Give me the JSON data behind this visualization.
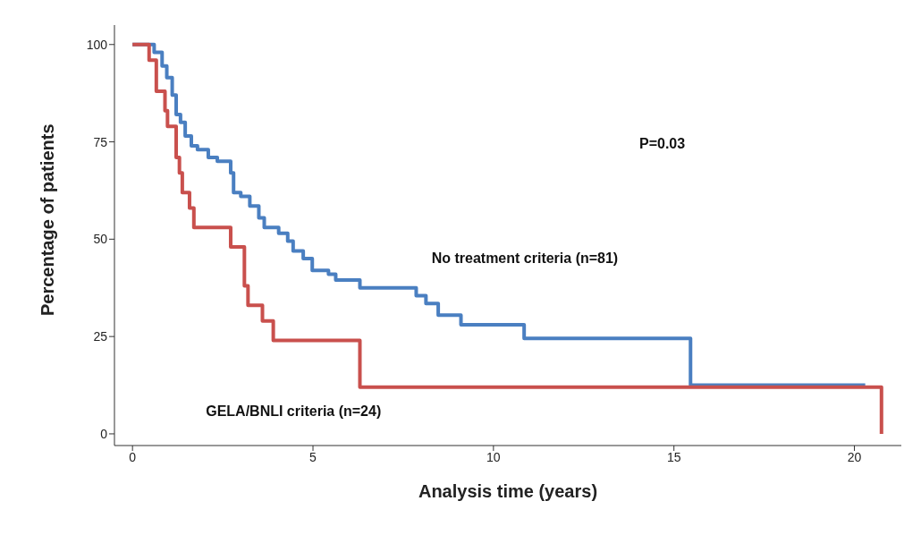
{
  "chart_data": {
    "type": "step",
    "xlabel": "Analysis time (years)",
    "ylabel": "Percentage of patients",
    "annotations": [
      "P=0.03"
    ],
    "xlim": [
      -0.5,
      21.3
    ],
    "xticks": [
      0,
      5,
      10,
      15,
      20
    ],
    "ylim": [
      -3,
      105
    ],
    "yticks": [
      0,
      25,
      50,
      75,
      100
    ],
    "grid": false,
    "legend": false,
    "line_style": "solid",
    "marker": "none",
    "series": [
      {
        "name": "No treatment criteria (n=81)",
        "color": "#4a7fc1",
        "x": [
          0,
          0.6,
          0.82,
          0.95,
          1.1,
          1.21,
          1.33,
          1.46,
          1.63,
          1.8,
          2.1,
          2.35,
          2.72,
          2.8,
          3.0,
          3.25,
          3.5,
          3.65,
          4.05,
          4.3,
          4.45,
          4.73,
          4.98,
          5.43,
          5.63,
          6.3,
          7.86,
          8.13,
          8.47,
          9.1,
          10.85,
          15.46,
          20.3
        ],
        "values": [
          100,
          98,
          94.5,
          91.5,
          87,
          82,
          80,
          76.5,
          74,
          73,
          71,
          70,
          67,
          62,
          61,
          58.5,
          55.5,
          53,
          51.5,
          49.5,
          47,
          45,
          42,
          41,
          39.5,
          37.5,
          35.5,
          33.5,
          30.5,
          28,
          24.5,
          12.5,
          12.5
        ]
      },
      {
        "name": "GELA/BNLI criteria (n=24)",
        "color": "#c9504d",
        "x": [
          0,
          0.46,
          0.66,
          0.9,
          0.97,
          1.21,
          1.3,
          1.38,
          1.58,
          1.7,
          2.72,
          3.1,
          3.2,
          3.6,
          3.9,
          6.3,
          20.75
        ],
        "values": [
          100,
          96,
          88,
          83,
          79,
          71,
          67,
          62,
          58,
          53,
          48,
          38,
          33,
          29,
          24,
          12,
          0
        ]
      }
    ]
  }
}
